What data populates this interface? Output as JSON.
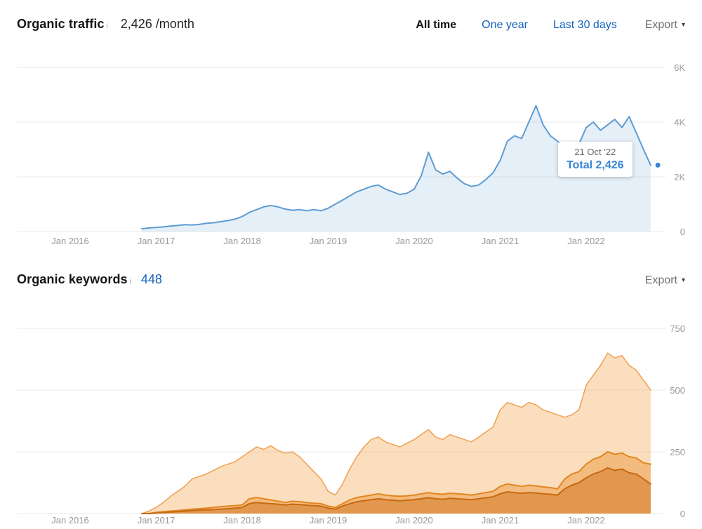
{
  "traffic_section": {
    "title": "Organic traffic",
    "info_icon": "i",
    "value": "2,426 /month",
    "tabs": [
      {
        "label": "All time",
        "active": true
      },
      {
        "label": "One year",
        "active": false
      },
      {
        "label": "Last 30 days",
        "active": false
      }
    ],
    "export_label": "Export",
    "tooltip": {
      "date": "21 Oct '22",
      "total": "Total 2,426"
    }
  },
  "keywords_section": {
    "title": "Organic keywords",
    "info_icon": "i",
    "value": "448",
    "export_label": "Export"
  },
  "colors": {
    "link_blue": "#1563bf",
    "tooltip_blue": "#3585d6",
    "traffic_line": "#5e9cd3",
    "keywords_light": "#f0a050",
    "keywords_medium": "#e2861e",
    "keywords_dark": "#c56a10",
    "grid": "#e9e9e9",
    "tick_text": "#999999"
  },
  "chart_data": [
    {
      "type": "area",
      "title": "Organic traffic",
      "xlabel": "",
      "ylabel": "",
      "xlim": [
        2015.38,
        2022.92
      ],
      "ylim": [
        0,
        6600
      ],
      "grid": "horizontal",
      "legend": "none",
      "x_start": 2016.8333,
      "x_step_months": 1,
      "yticks": [
        {
          "v": 0,
          "label": "0"
        },
        {
          "v": 2000,
          "label": "2K"
        },
        {
          "v": 4000,
          "label": "4K"
        },
        {
          "v": 6000,
          "label": "6K"
        }
      ],
      "xticks": [
        {
          "v": 2016,
          "label": "Jan 2016"
        },
        {
          "v": 2017,
          "label": "Jan 2017"
        },
        {
          "v": 2018,
          "label": "Jan 2018"
        },
        {
          "v": 2019,
          "label": "Jan 2019"
        },
        {
          "v": 2020,
          "label": "Jan 2020"
        },
        {
          "v": 2021,
          "label": "Jan 2021"
        },
        {
          "v": 2022,
          "label": "Jan 2022"
        }
      ],
      "marker": {
        "x": 2022.8333,
        "v": 2426,
        "color": "#3585d6"
      },
      "series": [
        {
          "name": "series-1",
          "color": "#5e9cd3",
          "fill": "rgba(110,165,214,0.18)",
          "width": 2,
          "values": [
            100,
            130,
            150,
            170,
            200,
            220,
            250,
            240,
            260,
            300,
            320,
            360,
            400,
            450,
            550,
            700,
            800,
            900,
            950,
            900,
            820,
            780,
            800,
            760,
            800,
            760,
            850,
            1000,
            1150,
            1300,
            1450,
            1550,
            1650,
            1700,
            1550,
            1450,
            1350,
            1400,
            1550,
            2050,
            2900,
            2250,
            2100,
            2200,
            1950,
            1750,
            1650,
            1700,
            1900,
            2150,
            2600,
            3300,
            3500,
            3400,
            4000,
            4600,
            3900,
            3500,
            3300,
            3100,
            3000,
            3200,
            3800,
            4000,
            3700,
            3900,
            4100,
            3800,
            4200,
            3600,
            3000,
            2426
          ]
        }
      ]
    },
    {
      "type": "area",
      "title": "Organic keywords",
      "xlabel": "",
      "ylabel": "",
      "xlim": [
        2015.38,
        2022.92
      ],
      "ylim": [
        0,
        790
      ],
      "grid": "horizontal",
      "legend": "none",
      "x_start": 2016.8333,
      "x_step_months": 1,
      "yticks": [
        {
          "v": 0,
          "label": "0"
        },
        {
          "v": 250,
          "label": "250"
        },
        {
          "v": 500,
          "label": "500"
        },
        {
          "v": 750,
          "label": "750"
        }
      ],
      "xticks": [
        {
          "v": 2016,
          "label": "Jan 2016"
        },
        {
          "v": 2017,
          "label": "Jan 2017"
        },
        {
          "v": 2018,
          "label": "Jan 2018"
        },
        {
          "v": 2019,
          "label": "Jan 2019"
        },
        {
          "v": 2020,
          "label": "Jan 2020"
        },
        {
          "v": 2021,
          "label": "Jan 2021"
        },
        {
          "v": 2022,
          "label": "Jan 2022"
        }
      ],
      "series": [
        {
          "name": "series-1",
          "color": "#f0a050",
          "fill": "rgba(245,167,84,0.38)",
          "width": 1.5,
          "values": [
            0,
            10,
            25,
            45,
            70,
            90,
            110,
            140,
            150,
            160,
            175,
            190,
            200,
            210,
            230,
            250,
            270,
            260,
            275,
            255,
            245,
            250,
            230,
            200,
            170,
            140,
            90,
            75,
            120,
            180,
            230,
            270,
            300,
            310,
            290,
            280,
            270,
            285,
            300,
            320,
            340,
            310,
            300,
            320,
            310,
            300,
            290,
            310,
            330,
            350,
            420,
            450,
            440,
            430,
            450,
            440,
            420,
            410,
            400,
            390,
            400,
            420,
            520,
            560,
            600,
            650,
            630,
            640,
            600,
            580,
            540,
            500
          ]
        },
        {
          "name": "series-2",
          "color": "#e2861e",
          "fill": "rgba(233,139,41,0.42)",
          "width": 2,
          "values": [
            0,
            0,
            5,
            8,
            10,
            12,
            15,
            18,
            20,
            22,
            25,
            28,
            30,
            32,
            35,
            60,
            65,
            60,
            55,
            50,
            45,
            50,
            48,
            45,
            42,
            40,
            30,
            25,
            40,
            55,
            65,
            70,
            75,
            80,
            75,
            72,
            70,
            72,
            75,
            80,
            85,
            80,
            78,
            82,
            80,
            78,
            75,
            80,
            85,
            90,
            110,
            120,
            115,
            110,
            115,
            112,
            108,
            105,
            100,
            140,
            160,
            170,
            200,
            220,
            230,
            250,
            240,
            245,
            230,
            225,
            205,
            200
          ]
        },
        {
          "name": "series-3",
          "color": "#c56a10",
          "fill": "rgba(205,108,21,0.45)",
          "width": 2,
          "values": [
            0,
            0,
            2,
            4,
            6,
            8,
            10,
            12,
            14,
            15,
            16,
            18,
            20,
            22,
            25,
            40,
            45,
            42,
            40,
            38,
            35,
            38,
            36,
            34,
            32,
            30,
            22,
            18,
            30,
            40,
            48,
            52,
            56,
            60,
            56,
            54,
            52,
            54,
            56,
            60,
            64,
            60,
            58,
            62,
            60,
            58,
            56,
            60,
            64,
            68,
            80,
            88,
            85,
            82,
            85,
            83,
            80,
            78,
            75,
            100,
            115,
            125,
            145,
            160,
            170,
            185,
            175,
            180,
            165,
            160,
            140,
            120
          ]
        }
      ]
    }
  ]
}
